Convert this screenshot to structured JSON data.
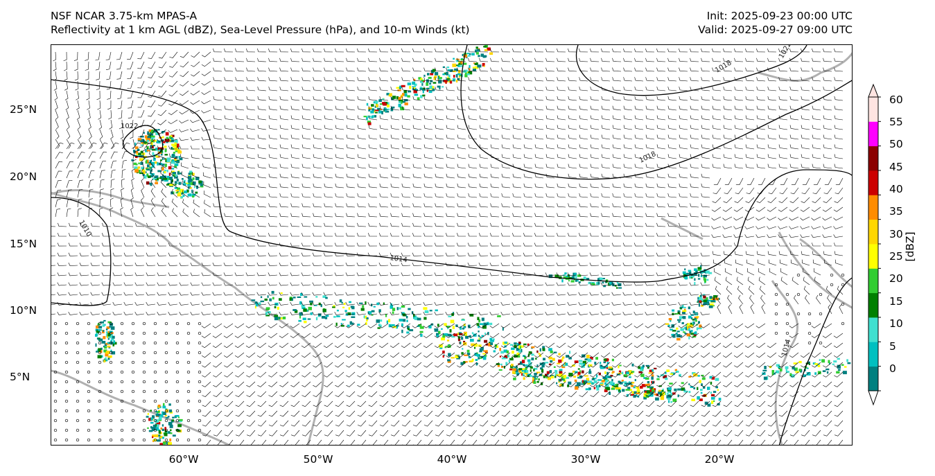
{
  "header": {
    "title_line1": "NSF NCAR 3.75-km MPAS-A",
    "title_line2": "Reflectivity at 1 km AGL (dBZ), Sea-Level Pressure (hPa), and 10-m Winds (kt)",
    "init": "Init: 2025-09-23 00:00 UTC",
    "valid": "Valid: 2025-09-27 09:00 UTC"
  },
  "axes": {
    "lat_labels": [
      "25°N",
      "20°N",
      "15°N",
      "10°N",
      "5°N"
    ],
    "lat_values": [
      25,
      20,
      15,
      10,
      5
    ],
    "lon_labels": [
      "60°W",
      "50°W",
      "40°W",
      "30°W",
      "20°W"
    ],
    "lon_values": [
      -60,
      -50,
      -40,
      -30,
      -20
    ],
    "lon_range": [
      -70,
      -10.4
    ],
    "lat_range": [
      0,
      29.7
    ]
  },
  "isobars": {
    "labels": [
      "1018",
      "1014",
      "1014",
      "1018",
      "1022",
      "1022",
      "1010",
      "1014"
    ]
  },
  "colorbar": {
    "title": "[dBZ]",
    "levels": [
      0,
      5,
      10,
      15,
      20,
      25,
      30,
      35,
      40,
      45,
      50,
      55,
      60
    ],
    "labels": [
      "0",
      "5",
      "10",
      "15",
      "20",
      "25",
      "30",
      "35",
      "40",
      "45",
      "50",
      "55",
      "60"
    ],
    "colors": [
      "#008080",
      "#00c0c0",
      "#40e0d0",
      "#008000",
      "#32cd32",
      "#ffff00",
      "#ffd700",
      "#ff8c00",
      "#cc0000",
      "#8b0000",
      "#ff00ff",
      "#ffe4e1"
    ]
  }
}
